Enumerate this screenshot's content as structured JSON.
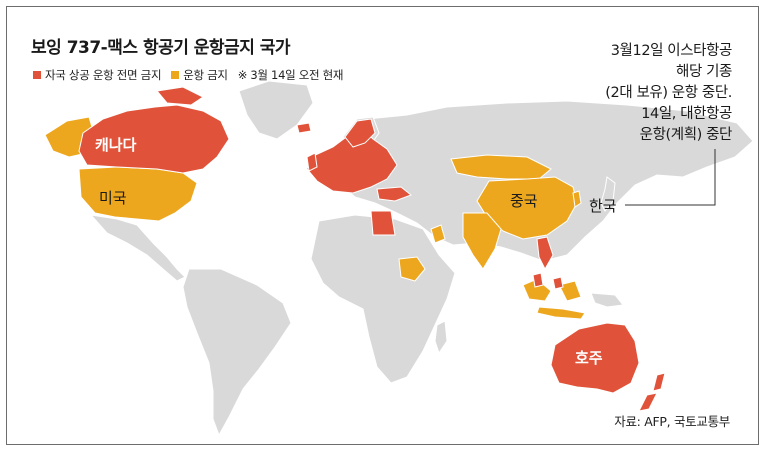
{
  "title": "보잉 737-맥스 항공기 운항금지 국가",
  "legend": {
    "full_ban": "자국 상공 운항 전면 금지",
    "operation_ban": "운항 금지",
    "note": "※ 3월 14일 오전 현재"
  },
  "colors": {
    "full_ban": "#e0533a",
    "operation_ban": "#eda71e",
    "land": "#d9d9d9",
    "ocean": "#ffffff"
  },
  "annotation": {
    "line1": "3월12일 이스타항공",
    "line2": "해당 기종",
    "line3": "(2대 보유) 운항 중단.",
    "line4": "14일, 대한항공",
    "line5": "운항(계획) 중단"
  },
  "labels": {
    "canada": "캐나다",
    "usa": "미국",
    "china": "중국",
    "korea": "한국",
    "australia": "호주"
  },
  "source": "자료: AFP, 국토교통부"
}
